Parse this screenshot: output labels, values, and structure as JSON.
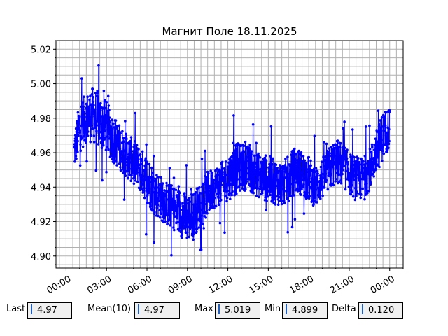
{
  "chart_data": {
    "type": "line",
    "title": "Магнит Поле 18.11.2025",
    "xlabel": "",
    "ylabel": "",
    "x_unit": "hours",
    "xlim": [
      -0.75,
      25
    ],
    "ylim": [
      4.893,
      5.025
    ],
    "x_ticks": [
      0,
      3,
      6,
      9,
      12,
      15,
      18,
      21,
      24
    ],
    "x_tick_labels": [
      "00:00",
      "03:00",
      "06:00",
      "09:00",
      "12:00",
      "15:00",
      "18:00",
      "21:00",
      "00:00"
    ],
    "y_ticks": [
      4.9,
      4.92,
      4.94,
      4.96,
      4.98,
      5.0,
      5.02
    ],
    "y_tick_labels": [
      "4.90",
      "4.92",
      "4.94",
      "4.96",
      "4.98",
      "5.00",
      "5.02"
    ],
    "grid": true,
    "series": [
      {
        "color": "#0000ff",
        "marker": "circle",
        "x": [
          0.6,
          1.0,
          1.5,
          2.0,
          2.5,
          3.0,
          3.5,
          4.0,
          4.5,
          5.0,
          5.5,
          6.0,
          6.5,
          7.0,
          7.5,
          8.0,
          8.5,
          9.0,
          9.5,
          10.0,
          10.5,
          11.0,
          11.5,
          12.0,
          12.5,
          13.0,
          13.5,
          14.0,
          14.5,
          15.0,
          15.5,
          16.0,
          16.5,
          17.0,
          17.5,
          18.0,
          18.5,
          19.0,
          19.5,
          20.0,
          20.5,
          21.0,
          21.5,
          22.0,
          22.5,
          23.0,
          23.5,
          24.0
        ],
        "y": [
          4.96,
          4.975,
          4.98,
          4.982,
          4.978,
          4.975,
          4.968,
          4.963,
          4.958,
          4.955,
          4.95,
          4.945,
          4.938,
          4.934,
          4.93,
          4.928,
          4.925,
          4.922,
          4.925,
          4.93,
          4.936,
          4.94,
          4.942,
          4.945,
          4.95,
          4.952,
          4.951,
          4.948,
          4.946,
          4.945,
          4.943,
          4.942,
          4.945,
          4.95,
          4.948,
          4.945,
          4.94,
          4.945,
          4.95,
          4.955,
          4.953,
          4.948,
          4.945,
          4.945,
          4.95,
          4.96,
          4.97,
          4.975
        ],
        "spread": [
          0.01,
          0.015,
          0.014,
          0.016,
          0.017,
          0.015,
          0.014,
          0.013,
          0.013,
          0.013,
          0.013,
          0.014,
          0.014,
          0.013,
          0.013,
          0.013,
          0.014,
          0.014,
          0.013,
          0.013,
          0.013,
          0.012,
          0.012,
          0.013,
          0.015,
          0.014,
          0.013,
          0.013,
          0.013,
          0.014,
          0.013,
          0.013,
          0.013,
          0.014,
          0.013,
          0.013,
          0.012,
          0.012,
          0.013,
          0.013,
          0.013,
          0.012,
          0.013,
          0.012,
          0.012,
          0.013,
          0.014,
          0.012
        ]
      }
    ]
  },
  "stats": {
    "last": {
      "label": "Last",
      "value": "4.97"
    },
    "mean": {
      "label": "Mean(10)",
      "value": "4.97"
    },
    "max": {
      "label": "Max",
      "value": "5.019"
    },
    "min": {
      "label": "Min",
      "value": "4.899"
    },
    "delta": {
      "label": "Delta",
      "value": "0.120"
    }
  }
}
